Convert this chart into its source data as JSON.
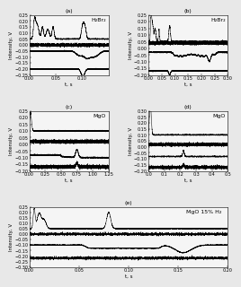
{
  "panels": [
    {
      "label": "(a)",
      "title": "H₂Br₂",
      "xlabel": "t, s",
      "ylabel": "Intensity, V",
      "xlim": [
        0,
        0.15
      ],
      "ylim": [
        -0.25,
        0.25
      ],
      "xticks": [
        0,
        0.05,
        0.1
      ],
      "yticks": [
        -0.25,
        -0.2,
        -0.15,
        -0.1,
        -0.05,
        0,
        0.05,
        0.1,
        0.15,
        0.2,
        0.25
      ],
      "type": "H2Br2_a"
    },
    {
      "label": "(b)",
      "title": "H₂Br₂",
      "xlabel": "t, s",
      "ylabel": "Intensity, V",
      "xlim": [
        0,
        0.3
      ],
      "ylim": [
        -0.2,
        0.25
      ],
      "xticks": [
        0,
        0.05,
        0.1,
        0.15,
        0.2,
        0.25,
        0.3
      ],
      "yticks": [
        -0.2,
        -0.15,
        -0.1,
        -0.05,
        0,
        0.05,
        0.1,
        0.15,
        0.2,
        0.25
      ],
      "type": "H2Br2_b"
    },
    {
      "label": "(c)",
      "title": "MgO",
      "xlabel": "t, s",
      "ylabel": "Intensity, V",
      "xlim": [
        0,
        1.25
      ],
      "ylim": [
        -0.2,
        0.25
      ],
      "xticks": [
        0,
        0.25,
        0.5,
        0.75,
        1.0,
        1.25
      ],
      "yticks": [
        -0.2,
        -0.15,
        -0.1,
        -0.05,
        0,
        0.05,
        0.1,
        0.15,
        0.2,
        0.25
      ],
      "type": "MgO_c"
    },
    {
      "label": "(d)",
      "title": "MgO",
      "xlabel": "t, s",
      "ylabel": "Intensity, V",
      "xlim": [
        0,
        0.5
      ],
      "ylim": [
        -0.2,
        0.3
      ],
      "xticks": [
        0,
        0.1,
        0.2,
        0.3,
        0.4,
        0.5
      ],
      "yticks": [
        -0.2,
        -0.15,
        -0.1,
        -0.05,
        0,
        0.05,
        0.1,
        0.15,
        0.2,
        0.25,
        0.3
      ],
      "type": "MgO_d"
    },
    {
      "label": "(e)",
      "title": "MgO 15% H₂",
      "xlabel": "t, s",
      "ylabel": "Intensity, V",
      "xlim": [
        0,
        0.2
      ],
      "ylim": [
        -0.3,
        0.25
      ],
      "xticks": [
        0,
        0.05,
        0.1,
        0.15,
        0.2
      ],
      "yticks": [
        -0.3,
        -0.25,
        -0.2,
        -0.15,
        -0.1,
        -0.05,
        0,
        0.05,
        0.1,
        0.15,
        0.2,
        0.25
      ],
      "type": "MgO_H2"
    }
  ],
  "bg_color": "#f0f0f0",
  "line_color": "#000000",
  "fontsize_label": 4.0,
  "fontsize_title": 4.5,
  "fontsize_tick": 3.5
}
